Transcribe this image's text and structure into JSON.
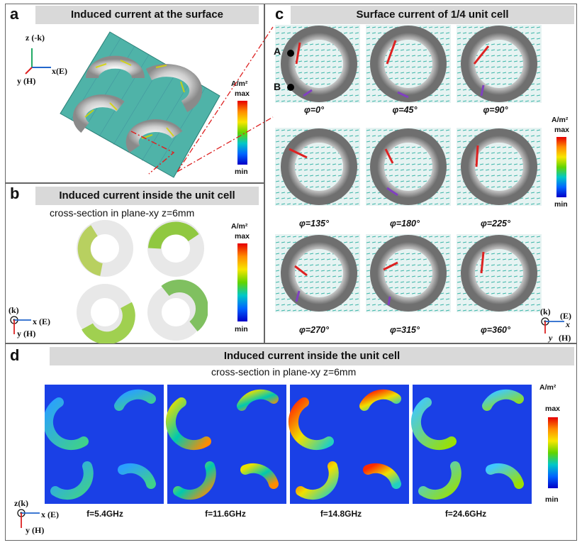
{
  "panel_a": {
    "label": "a",
    "title": "Induced current at the surface",
    "axis_z": "z (-k)",
    "axis_x": "x(E)",
    "axis_y": "y (H)",
    "cbar_unit": "A/m²",
    "cbar_max": "max",
    "cbar_min": "min"
  },
  "panel_b": {
    "label": "b",
    "title": "Induced current inside the unit cell",
    "subtitle": "cross-section in plane-xy  z=6mm",
    "axis_k": "(k)",
    "axis_x": "x (E)",
    "axis_y": "y (H)",
    "cbar_unit": "A/m²",
    "cbar_max": "max",
    "cbar_min": "min"
  },
  "panel_c": {
    "label": "c",
    "title": "Surface current of 1/4 unit cell",
    "point_a": "A",
    "point_b": "B",
    "phases": [
      "φ=0°",
      "φ=45°",
      "φ=90°",
      "φ=135°",
      "φ=180°",
      "φ=225°",
      "φ=270°",
      "φ=315°",
      "φ=360°"
    ],
    "axis_k": "(k)",
    "axis_e": "(E)",
    "axis_x": "x",
    "axis_y": "y",
    "axis_h": "(H)",
    "cbar_unit": "A/m²",
    "cbar_max": "max",
    "cbar_min": "min"
  },
  "panel_d": {
    "label": "d",
    "title": "Induced current inside the unit cell",
    "subtitle": "cross-section in plane-xy  z=6mm",
    "frequencies": [
      "f=5.4GHz",
      "f=11.6GHz",
      "f=14.8GHz",
      "f=24.6GHz"
    ],
    "axis_z": "z(k)",
    "axis_x": "x (E)",
    "axis_y": "y (H)",
    "cbar_unit": "A/m²",
    "cbar_max": "max",
    "cbar_min": "min"
  }
}
